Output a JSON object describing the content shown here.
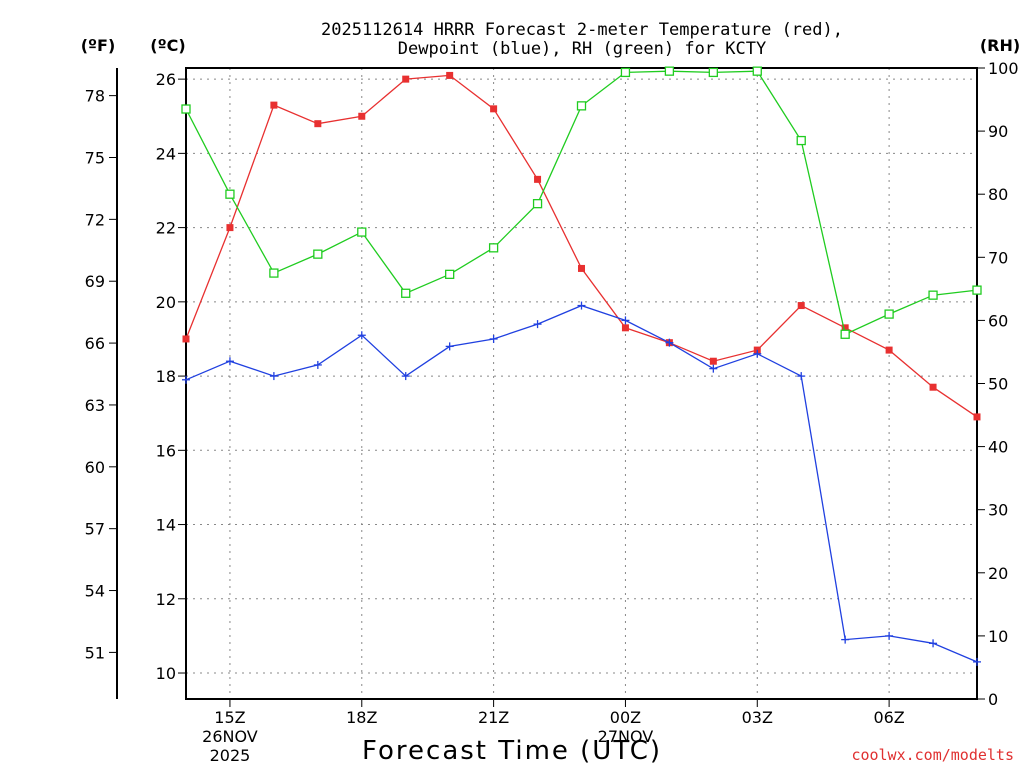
{
  "title": {
    "line1": "2025112614 HRRR Forecast 2-meter Temperature (red),",
    "line2": "Dewpoint (blue), RH (green) for KCTY"
  },
  "units": {
    "fahrenheit": "(ºF)",
    "celsius": "(ºC)",
    "rh": "(RH)"
  },
  "credit": "coolwx.com/modelts",
  "colors": {
    "temperature": "#e83030",
    "dewpoint": "#2040e0",
    "rh": "#20cc20"
  },
  "chart_data": {
    "type": "line",
    "title": "2025112614 HRRR Forecast 2-meter Temperature (red), Dewpoint (blue), RH (green) for KCTY",
    "xlabel": "Forecast Time (UTC)",
    "x": [
      14,
      15,
      16,
      17,
      18,
      19,
      20,
      21,
      22,
      23,
      24,
      25,
      26,
      27,
      28,
      29,
      30,
      31,
      32
    ],
    "x_unit": "hours after 00Z 26NOV 2025",
    "xlim": [
      14,
      32
    ],
    "x_ticks": [
      {
        "x": 15,
        "label": "15Z",
        "sub1": "26NOV",
        "sub2": "2025"
      },
      {
        "x": 18,
        "label": "18Z",
        "sub1": "",
        "sub2": ""
      },
      {
        "x": 21,
        "label": "21Z",
        "sub1": "",
        "sub2": ""
      },
      {
        "x": 24,
        "label": "00Z",
        "sub1": "27NOV",
        "sub2": ""
      },
      {
        "x": 27,
        "label": "03Z",
        "sub1": "",
        "sub2": ""
      },
      {
        "x": 30,
        "label": "06Z",
        "sub1": "",
        "sub2": ""
      }
    ],
    "celsius_axis": {
      "label": "(ºC)",
      "ylim": [
        9.3,
        26.3
      ],
      "ticks": [
        10,
        12,
        14,
        16,
        18,
        20,
        22,
        24,
        26
      ]
    },
    "fahrenheit_axis": {
      "label": "(ºF)",
      "ticks": [
        51,
        54,
        57,
        60,
        63,
        66,
        69,
        72,
        75,
        78
      ]
    },
    "rh_axis": {
      "label": "(RH)",
      "ylim": [
        0,
        100
      ],
      "ticks": [
        0,
        10,
        20,
        30,
        40,
        50,
        60,
        70,
        80,
        90,
        100
      ]
    },
    "series": [
      {
        "name": "Temperature",
        "unit": "C",
        "axis": "celsius",
        "marker": "filled-square",
        "values": [
          19.0,
          22.0,
          25.3,
          24.8,
          25.0,
          26.0,
          26.1,
          25.2,
          23.3,
          20.9,
          19.3,
          18.9,
          18.4,
          18.7,
          19.9,
          19.3,
          18.7,
          17.7,
          16.9
        ]
      },
      {
        "name": "Dewpoint",
        "unit": "C",
        "axis": "celsius",
        "marker": "plus",
        "values": [
          17.9,
          18.4,
          18.0,
          18.3,
          19.1,
          18.0,
          18.8,
          19.0,
          19.4,
          19.9,
          19.5,
          18.9,
          18.2,
          18.6,
          18.0,
          10.9,
          11.0,
          10.8,
          10.3
        ]
      },
      {
        "name": "RH",
        "unit": "%",
        "axis": "rh",
        "marker": "open-square",
        "values": [
          93.5,
          80.0,
          67.5,
          70.5,
          74.0,
          64.3,
          67.3,
          71.5,
          78.5,
          94.0,
          99.3,
          99.5,
          99.3,
          99.5,
          88.5,
          57.8,
          61.0,
          64.0,
          64.8
        ]
      }
    ]
  }
}
